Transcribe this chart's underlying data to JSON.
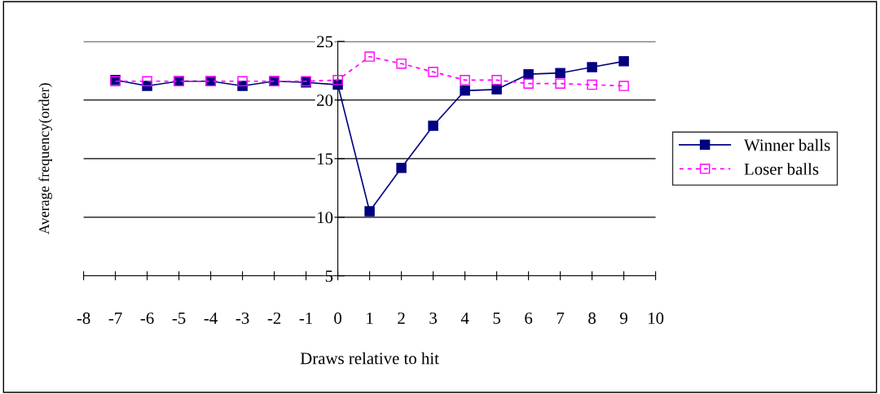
{
  "chart_data": {
    "type": "line",
    "xlabel": "Draws relative to hit",
    "ylabel": "Average frequency(order)",
    "x": [
      -7,
      -6,
      -5,
      -4,
      -3,
      -2,
      -1,
      0,
      1,
      2,
      3,
      4,
      5,
      6,
      7,
      8,
      9
    ],
    "series": [
      {
        "name": "Winner balls",
        "color": "#000080",
        "marker": "square",
        "line_style": "solid",
        "values": [
          21.7,
          21.2,
          21.6,
          21.6,
          21.2,
          21.6,
          21.5,
          21.3,
          10.5,
          14.2,
          17.8,
          20.8,
          20.9,
          22.2,
          22.3,
          22.8,
          23.3
        ]
      },
      {
        "name": "Loser balls",
        "color": "#ff00ff",
        "marker": "square",
        "line_style": "dashed",
        "values": [
          21.6,
          21.6,
          21.6,
          21.6,
          21.6,
          21.6,
          21.6,
          21.7,
          23.7,
          23.1,
          22.4,
          21.7,
          21.7,
          21.4,
          21.4,
          21.3,
          21.2
        ]
      }
    ],
    "xlim": [
      -8,
      10
    ],
    "xticks": [
      -8,
      -7,
      -6,
      -5,
      -4,
      -3,
      -2,
      -1,
      0,
      1,
      2,
      3,
      4,
      5,
      6,
      7,
      8,
      9,
      10
    ],
    "ylim": [
      5,
      25
    ],
    "yticks": [
      5,
      10,
      15,
      20,
      25
    ],
    "grid": "y",
    "legend": "right"
  }
}
